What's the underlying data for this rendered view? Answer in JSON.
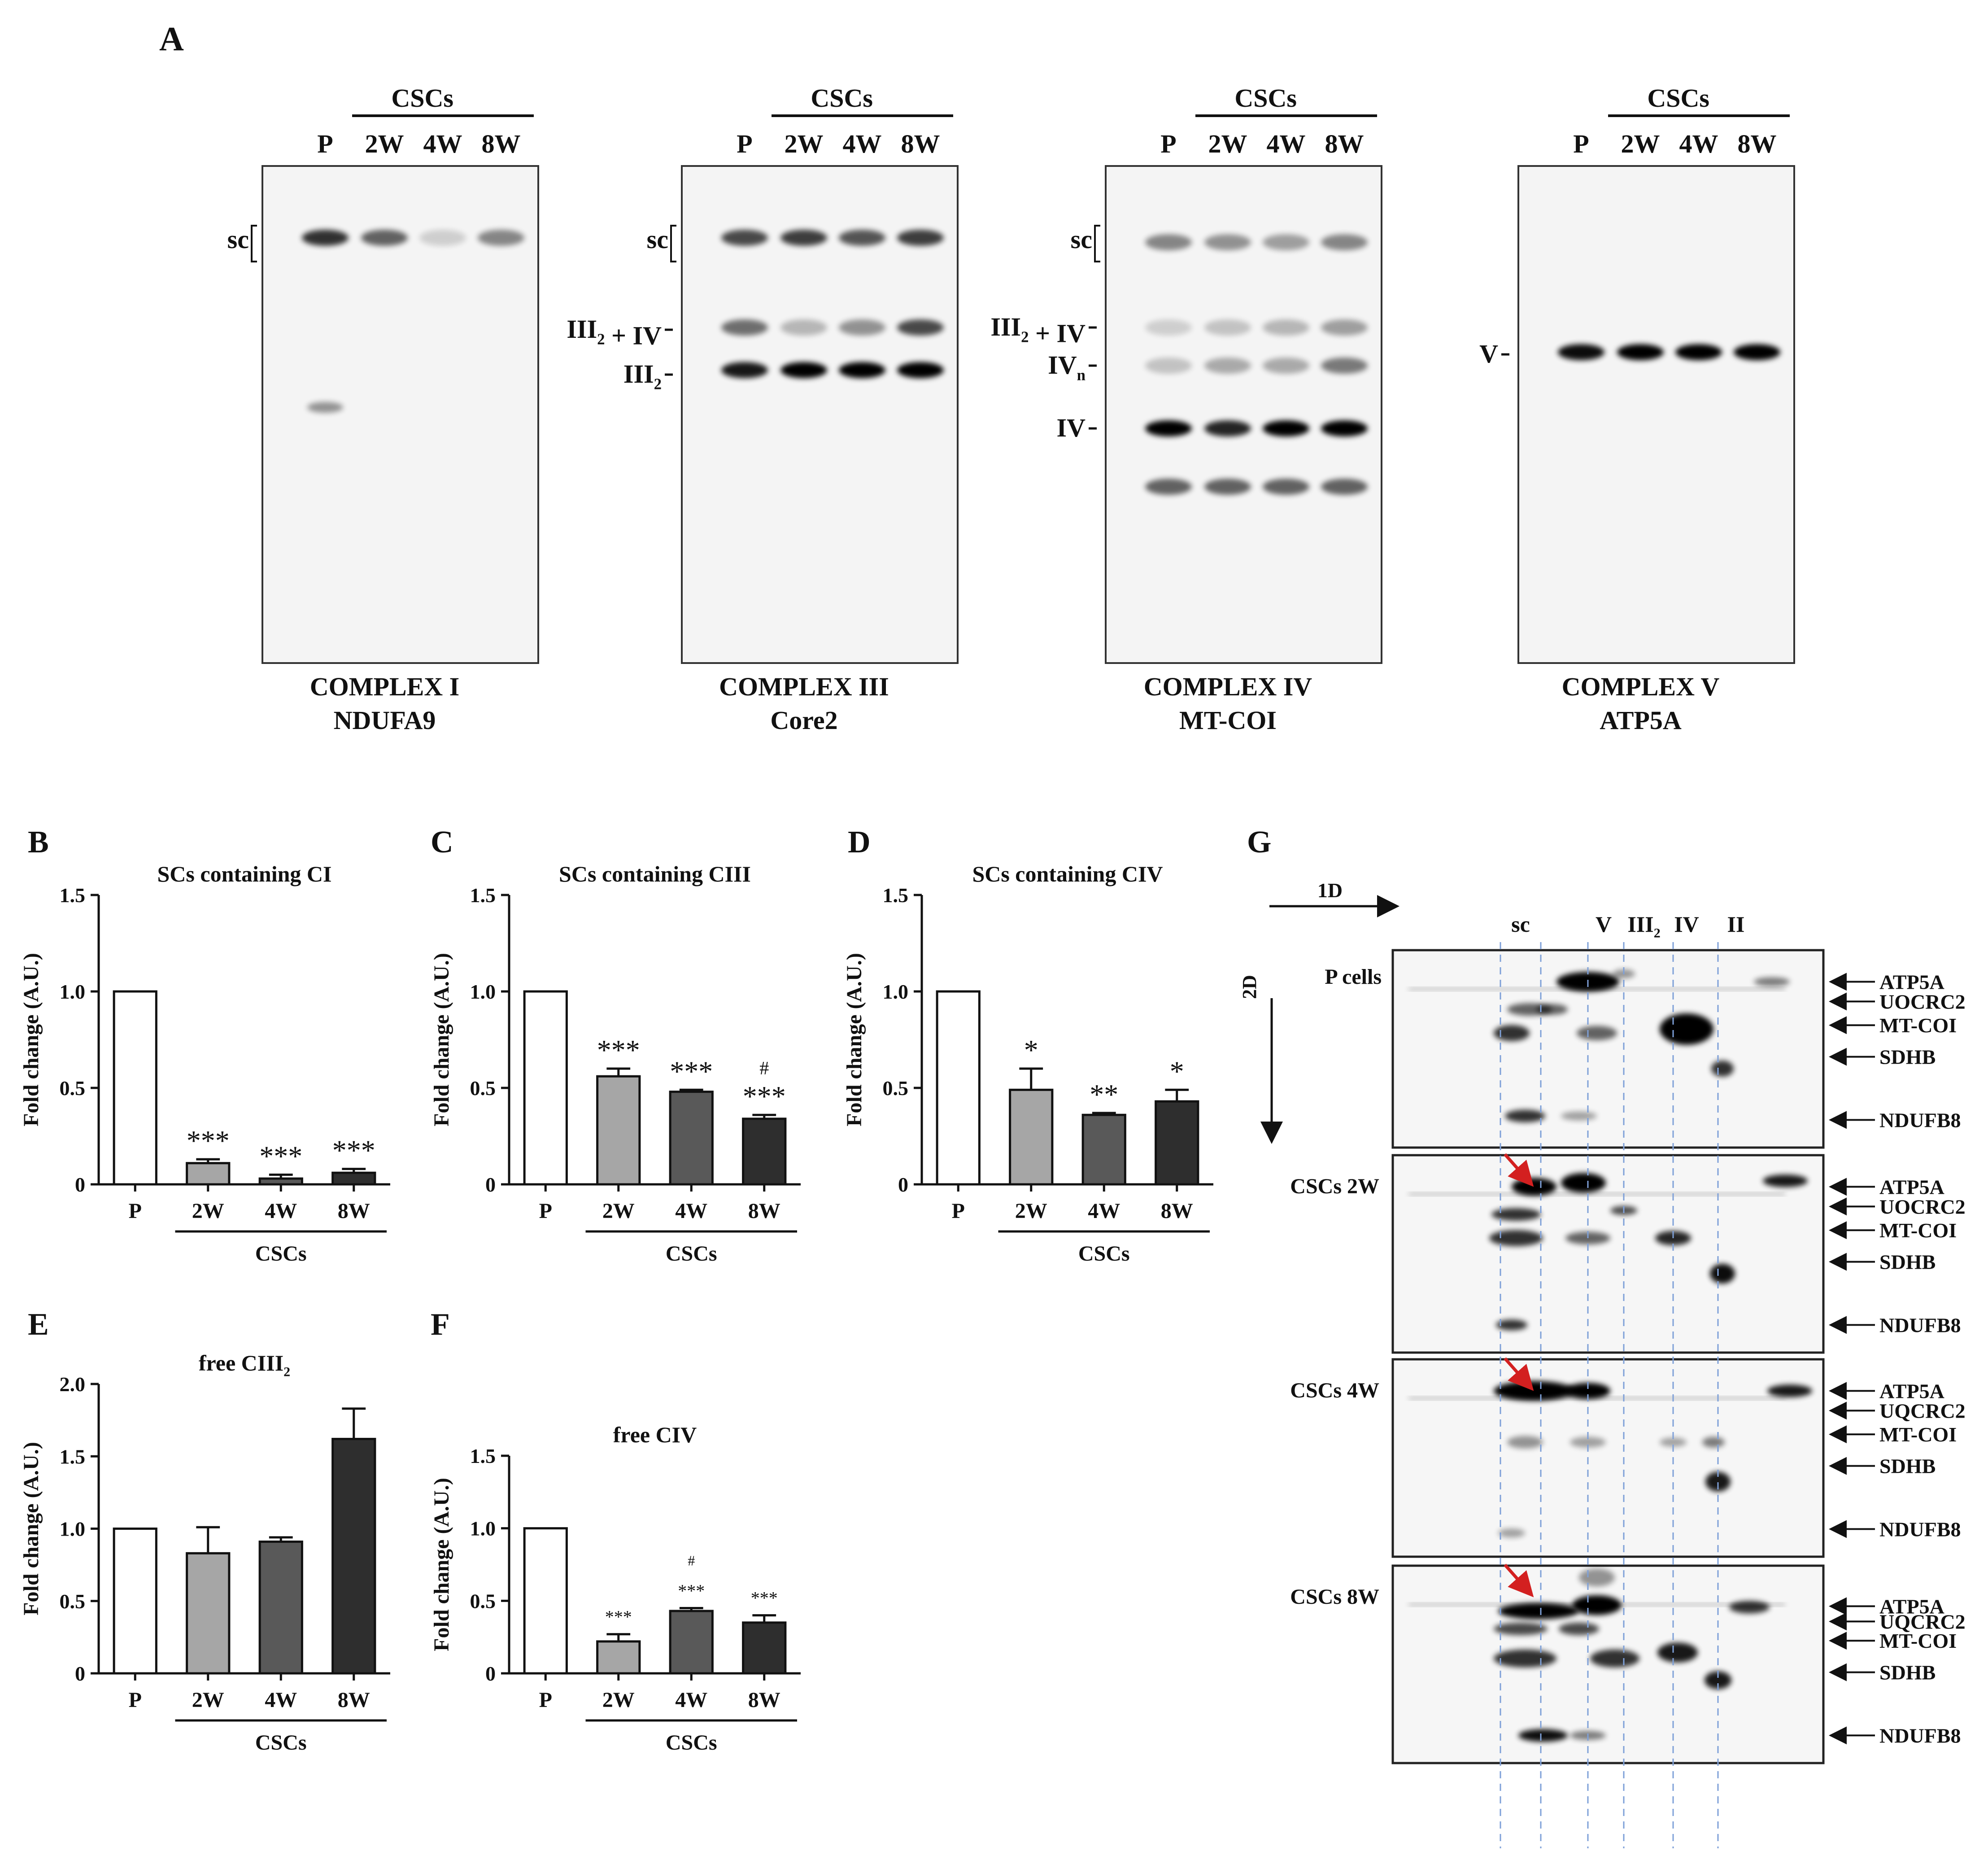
{
  "panel_labels": {
    "A": "A",
    "B": "B",
    "C": "C",
    "D": "D",
    "E": "E",
    "F": "F",
    "G": "G"
  },
  "blots": [
    {
      "group": "CSCs",
      "lanes": [
        "P",
        "2W",
        "4W",
        "8W"
      ],
      "bands": [
        "sc"
      ],
      "caption1": "COMPLEX I",
      "caption2": "NDUFA9"
    },
    {
      "group": "CSCs",
      "lanes": [
        "P",
        "2W",
        "4W",
        "8W"
      ],
      "bands": [
        "sc",
        "III2 + IV",
        "III2"
      ],
      "caption1": "COMPLEX III",
      "caption2": "Core2"
    },
    {
      "group": "CSCs",
      "lanes": [
        "P",
        "2W",
        "4W",
        "8W"
      ],
      "bands": [
        "sc",
        "III2 + IV",
        "IVn",
        "IV"
      ],
      "caption1": "COMPLEX IV",
      "caption2": "MT-COI"
    },
    {
      "group": "CSCs",
      "lanes": [
        "P",
        "2W",
        "4W",
        "8W"
      ],
      "bands": [
        "V"
      ],
      "caption1": "COMPLEX V",
      "caption2": "ATP5A"
    }
  ],
  "chart_data": [
    {
      "panel": "B",
      "type": "bar",
      "title": "SCs containing CI",
      "ylabel": "Fold change (A.U.)",
      "ylim": [
        0,
        1.5
      ],
      "yticks": [
        "0",
        "0.5",
        "1.0",
        "1.5"
      ],
      "categories": [
        "P",
        "2W",
        "4W",
        "8W"
      ],
      "values": [
        1.0,
        0.11,
        0.03,
        0.06
      ],
      "errors": [
        0,
        0.02,
        0.02,
        0.02
      ],
      "annotations": [
        "",
        "***",
        "***",
        "***"
      ],
      "annotations2": [
        "",
        "",
        "",
        ""
      ],
      "group_label": "CSCs"
    },
    {
      "panel": "C",
      "type": "bar",
      "title": "SCs containing CIII",
      "ylabel": "Fold change (A.U.)",
      "ylim": [
        0,
        1.5
      ],
      "yticks": [
        "0",
        "0.5",
        "1.0",
        "1.5"
      ],
      "categories": [
        "P",
        "2W",
        "4W",
        "8W"
      ],
      "values": [
        1.0,
        0.56,
        0.48,
        0.34
      ],
      "errors": [
        0,
        0.04,
        0.01,
        0.02
      ],
      "annotations": [
        "",
        "***",
        "***",
        "***"
      ],
      "annotations2": [
        "",
        "",
        "",
        "#"
      ],
      "group_label": "CSCs"
    },
    {
      "panel": "D",
      "type": "bar",
      "title": "SCs containing CIV",
      "ylabel": "Fold change (A.U.)",
      "ylim": [
        0,
        1.5
      ],
      "yticks": [
        "0",
        "0.5",
        "1.0",
        "1.5"
      ],
      "categories": [
        "P",
        "2W",
        "4W",
        "8W"
      ],
      "values": [
        1.0,
        0.49,
        0.36,
        0.43
      ],
      "errors": [
        0,
        0.11,
        0.01,
        0.06
      ],
      "annotations": [
        "",
        "*",
        "**",
        "*"
      ],
      "annotations2": [
        "",
        "",
        "",
        ""
      ],
      "group_label": "CSCs"
    },
    {
      "panel": "E",
      "type": "bar",
      "title": "free CIII2",
      "ylabel": "Fold change (A.U.)",
      "ylim": [
        0,
        2.0
      ],
      "yticks": [
        "0",
        "0.5",
        "1.0",
        "1.5",
        "2.0"
      ],
      "categories": [
        "P",
        "2W",
        "4W",
        "8W"
      ],
      "values": [
        1.0,
        0.83,
        0.91,
        1.62
      ],
      "errors": [
        0,
        0.18,
        0.03,
        0.21
      ],
      "annotations": [
        "",
        "",
        "",
        ""
      ],
      "annotations2": [
        "",
        "",
        "",
        ""
      ],
      "group_label": "CSCs"
    },
    {
      "panel": "F",
      "type": "bar",
      "title": "free CIV",
      "ylabel": "Fold change (A.U.)",
      "ylim": [
        0,
        1.5
      ],
      "yticks": [
        "0",
        "0.5",
        "1.0",
        "1.5"
      ],
      "categories": [
        "P",
        "2W",
        "4W",
        "8W"
      ],
      "values": [
        1.0,
        0.22,
        0.43,
        0.35
      ],
      "errors": [
        0,
        0.05,
        0.02,
        0.05
      ],
      "annotations": [
        "",
        "***",
        "***",
        "***"
      ],
      "annotations2": [
        "",
        "",
        "#",
        ""
      ],
      "group_label": "CSCs"
    }
  ],
  "gel2d": {
    "axis1": "1D",
    "axis2": "2D",
    "columns": [
      "sc",
      "V",
      "III2",
      "IV",
      "II"
    ],
    "rows": [
      {
        "label": "P cells",
        "proteins": [
          "ATP5A",
          "UOCRC2",
          "MT-COI",
          "SDHB",
          "NDUFB8"
        ]
      },
      {
        "label": "CSCs 2W",
        "proteins": [
          "ATP5A",
          "UOCRC2",
          "MT-COI",
          "SDHB",
          "NDUFB8"
        ]
      },
      {
        "label": "CSCs 4W",
        "proteins": [
          "ATP5A",
          "UQCRC2",
          "MT-COI",
          "SDHB",
          "NDUFB8"
        ]
      },
      {
        "label": "CSCs 8W",
        "proteins": [
          "ATP5A",
          "UQCRC2",
          "MT-COI",
          "SDHB",
          "NDUFB8"
        ]
      }
    ]
  },
  "colors": {
    "P": "#ffffff",
    "2W": "#a6a6a6",
    "4W": "#595959",
    "8W": "#2e2e2e",
    "arrow": "#d32020",
    "guides": "#7ea0d8"
  }
}
